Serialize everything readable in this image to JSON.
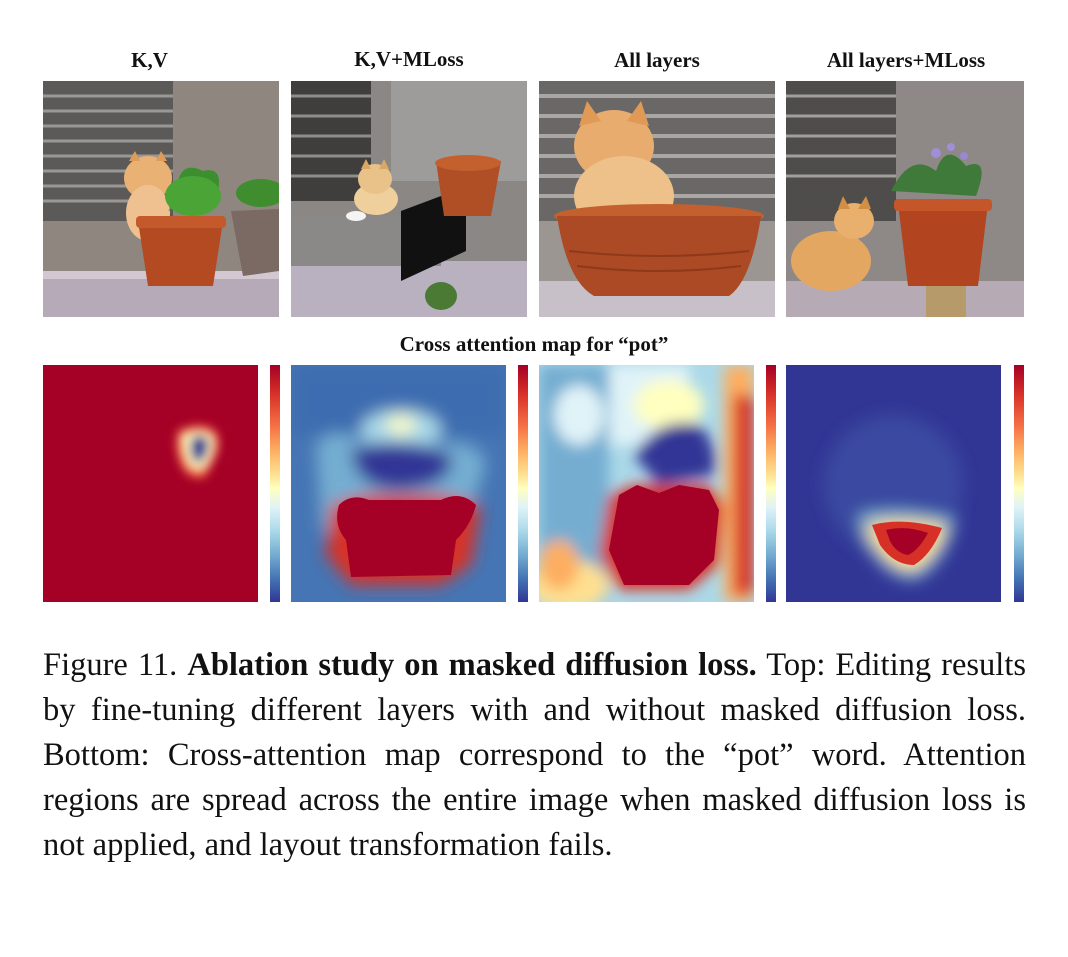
{
  "columns": [
    {
      "title": "K,V"
    },
    {
      "title": "K,V+MLoss"
    },
    {
      "title": "All layers"
    },
    {
      "title": "All layers+MLoss"
    }
  ],
  "attention_title": "Cross attention map for “pot”",
  "caption": {
    "label": "Figure 11.",
    "bold": "Ablation study on masked diffusion loss.",
    "text": "Top: Editing results by fine-tuning different layers with and without masked diffusion loss.  Bottom: Cross-attention map correspond to the “pot” word.  Attention regions are spread across the entire image when masked diffusion loss is not applied, and layout transformation fails."
  },
  "colors": {
    "attn_high": "#a50026",
    "attn_low": "#313695"
  }
}
